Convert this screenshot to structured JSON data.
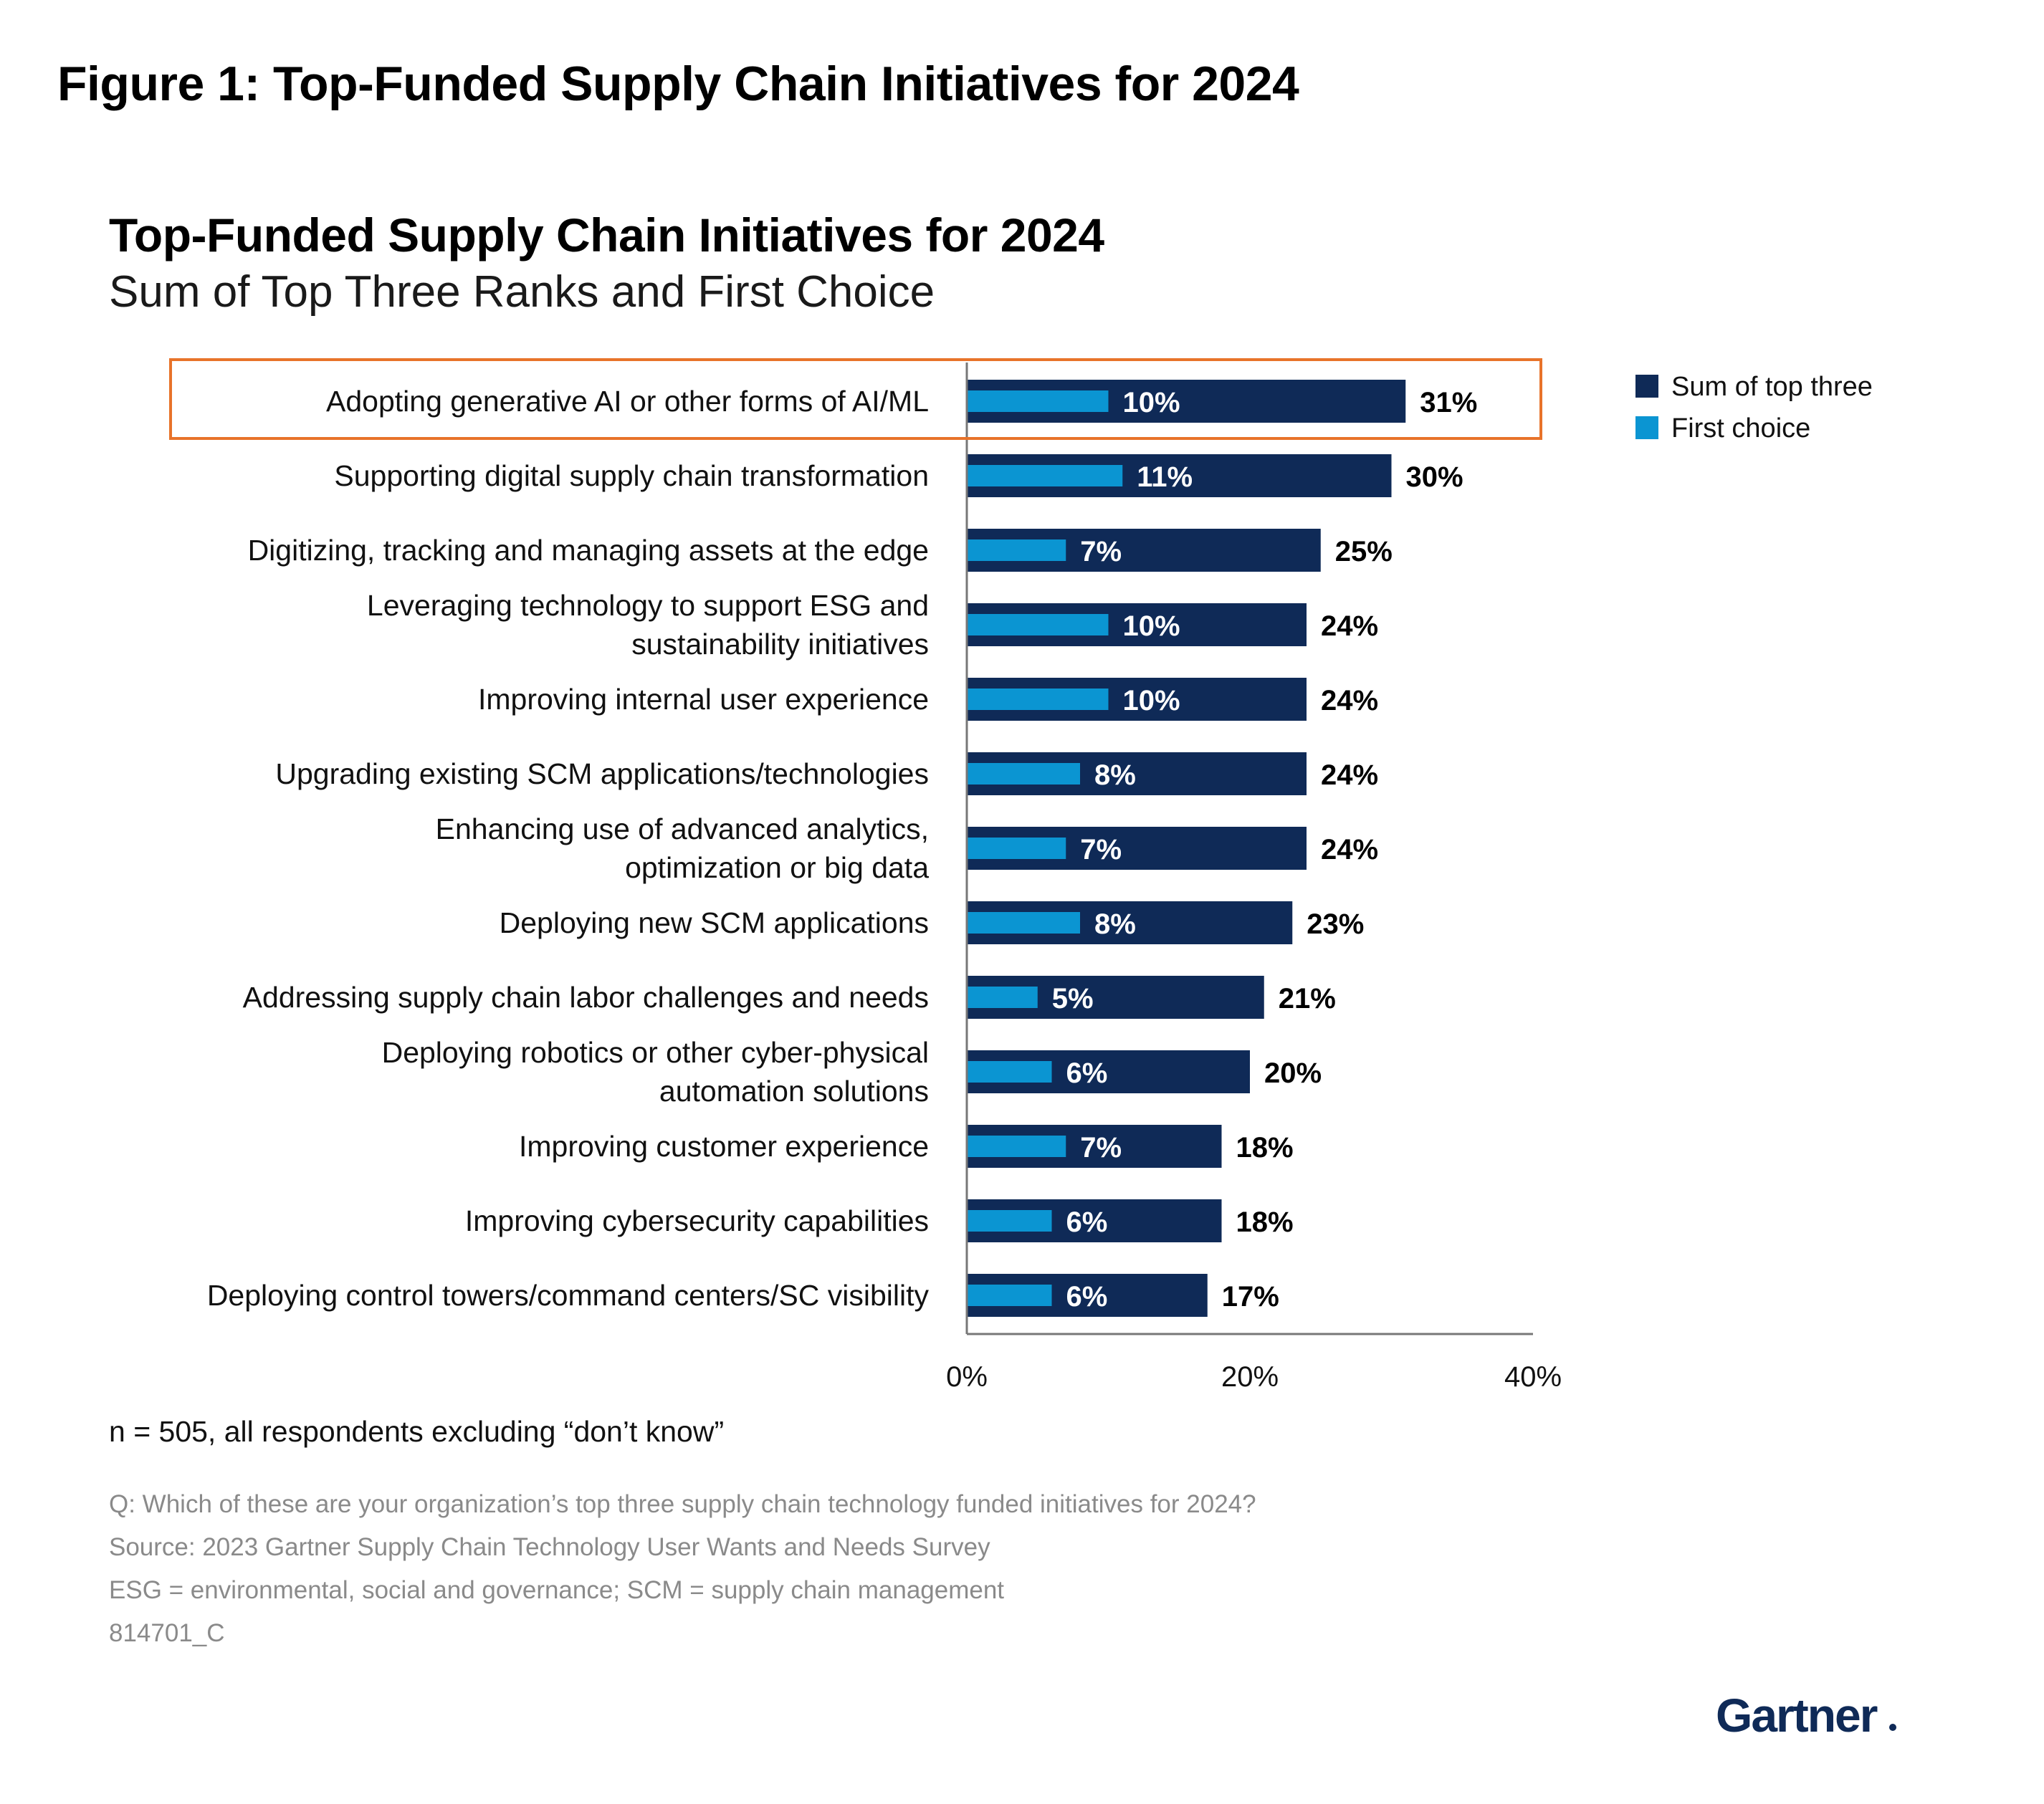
{
  "figure_title": "Figure 1: Top-Funded Supply Chain Initiatives for 2024",
  "chart_data": {
    "type": "bar",
    "orientation": "horizontal",
    "title": "Top-Funded Supply Chain Initiatives for 2024",
    "subtitle": "Sum of Top Three Ranks and First Choice",
    "categories": [
      [
        "Adopting generative AI or other forms of AI/ML"
      ],
      [
        "Supporting digital supply chain transformation"
      ],
      [
        "Digitizing, tracking and managing assets at the edge"
      ],
      [
        "Leveraging technology to support ESG and",
        "sustainability initiatives"
      ],
      [
        "Improving internal user experience"
      ],
      [
        "Upgrading existing SCM applications/technologies"
      ],
      [
        "Enhancing use of advanced analytics,",
        "optimization or big data"
      ],
      [
        "Deploying new SCM applications"
      ],
      [
        "Addressing supply chain labor challenges and needs"
      ],
      [
        "Deploying robotics or other cyber-physical",
        "automation solutions"
      ],
      [
        "Improving customer experience"
      ],
      [
        "Improving cybersecurity capabilities"
      ],
      [
        "Deploying control towers/command centers/SC visibility"
      ]
    ],
    "series": [
      {
        "name": "Sum of top three",
        "color": "#0f2a57",
        "values": [
          31,
          30,
          25,
          24,
          24,
          24,
          24,
          23,
          21,
          20,
          18,
          18,
          17
        ]
      },
      {
        "name": "First choice",
        "color": "#0b95d2",
        "values": [
          10,
          11,
          7,
          10,
          10,
          8,
          7,
          8,
          5,
          6,
          7,
          6,
          6
        ]
      }
    ],
    "value_suffix": "%",
    "xlim": [
      0,
      40
    ],
    "xticks": [
      "0%",
      "20%",
      "40%"
    ],
    "xtick_values": [
      0,
      20,
      40
    ],
    "highlighted_category_index": 0,
    "highlight_color": "#e8732a",
    "legend_position": "top-right"
  },
  "legend": {
    "dark_label": "Sum of top three",
    "light_label": "First choice"
  },
  "note": "n = 505, all respondents excluding “don’t know”",
  "footer": {
    "question": "Q: Which of these are your organization’s top three supply chain technology funded initiatives for 2024?",
    "source": "Source: 2023 Gartner Supply Chain Technology User Wants and Needs Survey",
    "abbreviations": "ESG = environmental, social and governance; SCM = supply chain management",
    "id": "814701_C"
  },
  "logo_text": "Gartner"
}
